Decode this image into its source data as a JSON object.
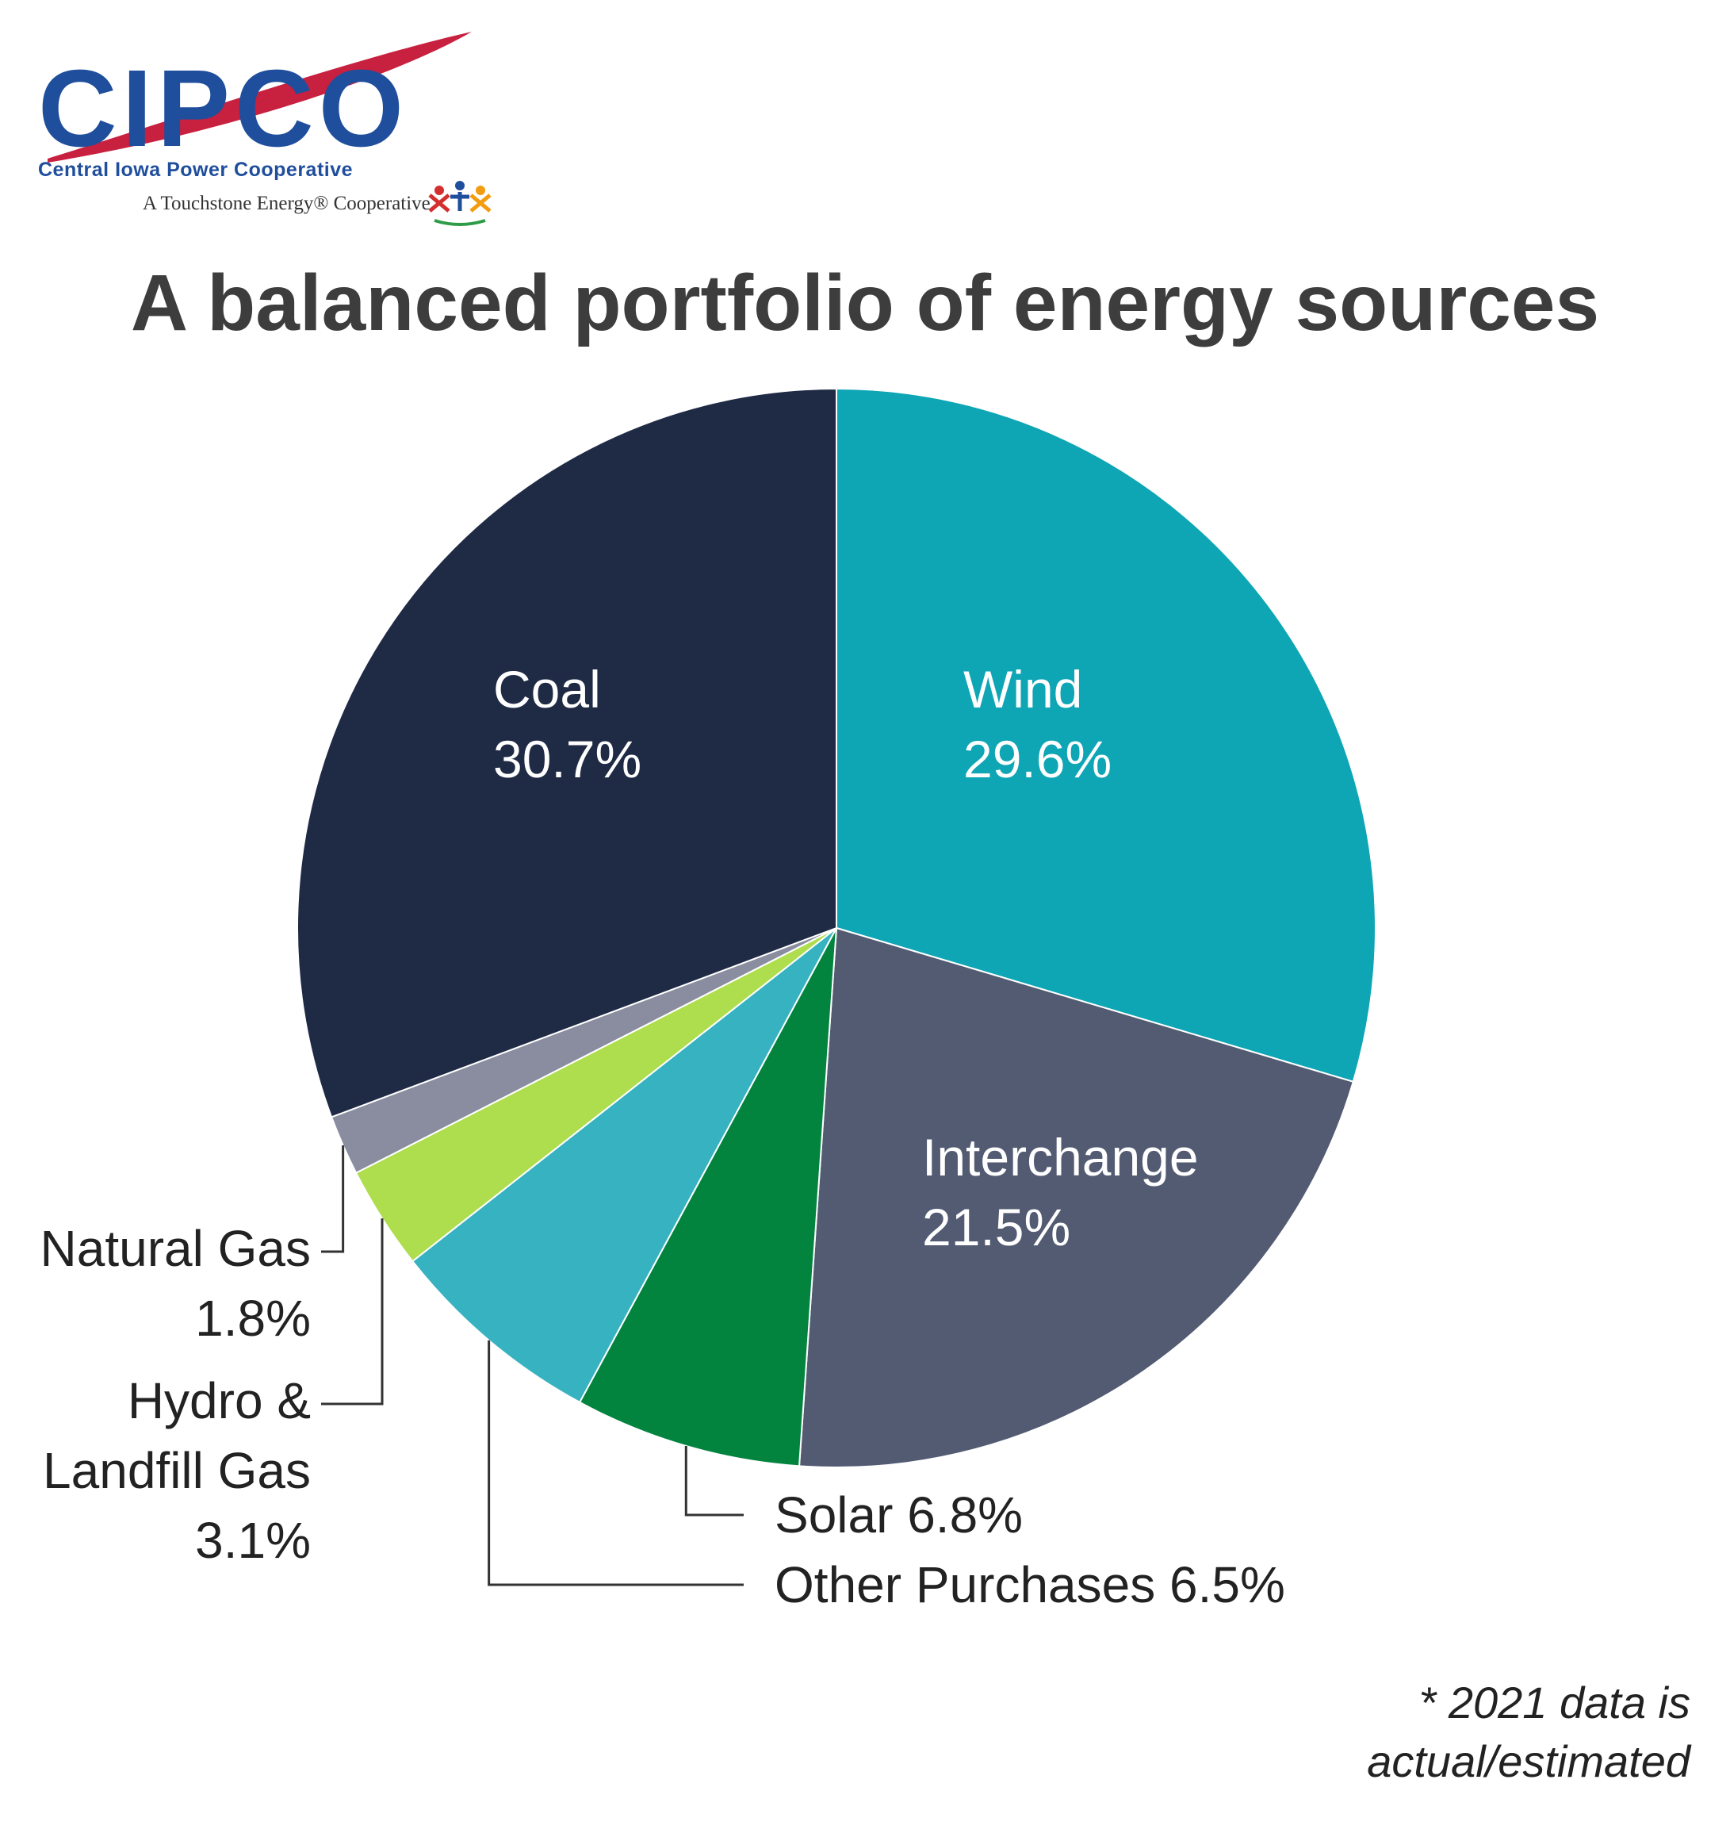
{
  "logo": {
    "wordmark": "CIPCO",
    "name": "Central Iowa Power Cooperative",
    "tagline": "A Touchstone Energy® Cooperative"
  },
  "chart_data": {
    "type": "pie",
    "title": "A balanced portfolio of energy sources",
    "slices": [
      {
        "name": "Wind",
        "value": 29.6,
        "label": "29.6%",
        "color": "#0ea5b5"
      },
      {
        "name": "Interchange",
        "value": 21.5,
        "label": "21.5%",
        "color": "#525b72"
      },
      {
        "name": "Solar",
        "value": 6.8,
        "label": "6.8%",
        "color": "#02843f"
      },
      {
        "name": "Other Purchases",
        "value": 6.5,
        "label": "6.5%",
        "color": "#36b2c1"
      },
      {
        "name": "Hydro & Landfill Gas",
        "value": 3.1,
        "label": "3.1%",
        "color": "#aedd4d"
      },
      {
        "name": "Natural Gas",
        "value": 1.8,
        "label": "1.8%",
        "color": "#898d9f"
      },
      {
        "name": "Coal",
        "value": 30.7,
        "label": "30.7%",
        "color": "#1f2a44"
      }
    ],
    "labels": {
      "wind": "Wind",
      "wind_pct": "29.6%",
      "coal": "Coal",
      "coal_pct": "30.7%",
      "interchange": "Interchange",
      "interchange_pct": "21.5%",
      "natural_gas": "Natural Gas",
      "natural_gas_pct": "1.8%",
      "hydro_line1": "Hydro &",
      "hydro_line2": "Landfill Gas",
      "hydro_pct": "3.1%",
      "solar": "Solar 6.8%",
      "other": "Other Purchases 6.5%"
    },
    "footnote_line1": "* 2021 data is",
    "footnote_line2": "actual/estimated"
  }
}
